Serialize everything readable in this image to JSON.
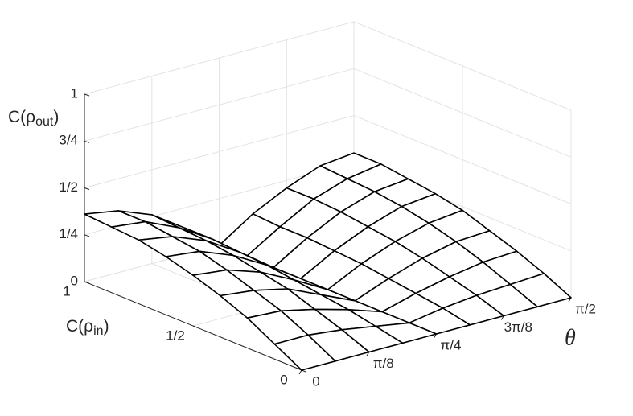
{
  "chart_data": {
    "type": "surface",
    "zlabel": [
      "C(ρ",
      "out",
      ")"
    ],
    "ylabel": [
      "C(ρ",
      "in",
      ")"
    ],
    "xlabel": "θ",
    "x": [
      0,
      0.19635,
      0.3927,
      0.58905,
      0.7854,
      0.98175,
      1.1781,
      1.37445,
      1.5708
    ],
    "y": [
      0,
      0.125,
      0.25,
      0.375,
      0.5,
      0.625,
      0.75,
      0.875,
      1
    ],
    "z": [
      [
        0,
        0,
        0,
        0,
        0,
        0,
        0,
        0,
        0
      ],
      [
        0.08,
        0.08,
        0.06,
        0.03,
        0,
        0.03,
        0.05,
        0.06,
        0.07
      ],
      [
        0.16,
        0.15,
        0.11,
        0.06,
        0,
        0.05,
        0.09,
        0.12,
        0.13
      ],
      [
        0.22,
        0.2,
        0.16,
        0.08,
        0,
        0.07,
        0.13,
        0.17,
        0.18
      ],
      [
        0.27,
        0.25,
        0.19,
        0.1,
        0,
        0.09,
        0.16,
        0.21,
        0.23
      ],
      [
        0.31,
        0.29,
        0.22,
        0.12,
        0,
        0.1,
        0.18,
        0.24,
        0.26
      ],
      [
        0.34,
        0.31,
        0.24,
        0.13,
        0,
        0.11,
        0.2,
        0.26,
        0.28
      ],
      [
        0.35,
        0.33,
        0.25,
        0.14,
        0,
        0.11,
        0.21,
        0.27,
        0.3
      ],
      [
        0.36,
        0.33,
        0.26,
        0.14,
        0,
        0.12,
        0.21,
        0.28,
        0.3
      ]
    ],
    "xlim": [
      0,
      1.5708
    ],
    "xticks": [
      0,
      {
        "value": 0.3927,
        "label": "π/8"
      },
      {
        "value": 0.7854,
        "label": "π/4"
      },
      {
        "value": 1.1781,
        "label": "3π/8"
      },
      {
        "value": 1.5708,
        "label": "π/2"
      }
    ],
    "ylim": [
      0,
      1
    ],
    "yticks": [
      0,
      {
        "value": 0.5,
        "label": "1/2"
      },
      1
    ],
    "zlim": [
      0,
      1
    ],
    "zticks": [
      0,
      {
        "value": 0.25,
        "label": "1/4"
      },
      {
        "value": 0.5,
        "label": "1/2"
      },
      {
        "value": 0.75,
        "label": "3/4"
      },
      1
    ],
    "grid": true,
    "edge_color": "#000000",
    "face_color": "#ffffff"
  }
}
